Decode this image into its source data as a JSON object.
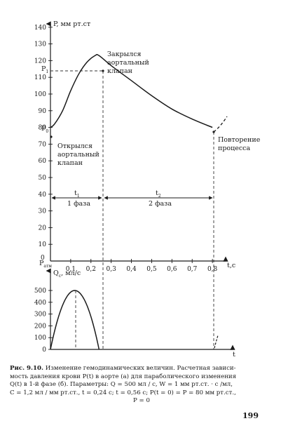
{
  "figure": {
    "top_axis": {
      "ylabel": "P, мм рт.ст",
      "xlabel": "t,с",
      "y_ticks": [
        "140",
        "130",
        "120",
        "110",
        "100",
        "90",
        "80",
        "70",
        "60",
        "50",
        "40",
        "30",
        "20",
        "10"
      ],
      "x_ticks": [
        "0,1",
        "0,2",
        "0,3",
        "0,4",
        "0,5",
        "0,6",
        "0,7",
        "0,8"
      ],
      "origin_y": "0",
      "p_max": "P",
      "p_max_sub": "1",
      "p_min": "P",
      "p_min_sub": "0",
      "p_atm": "P",
      "p_atm_sub": "атм"
    },
    "bottom_axis": {
      "ylabel": "Q",
      "ylabel_sub": "c",
      "ylabel_unit": ", мл/с",
      "xlabel": "t",
      "y_ticks": [
        "500",
        "400",
        "300",
        "200",
        "100",
        "0"
      ]
    },
    "annotations": {
      "closed_1": "Закрылся",
      "closed_2": "аортальный",
      "closed_3": "клапан",
      "opened_1": "Открылся",
      "opened_2": "аортальный",
      "opened_3": "клапан",
      "repeat_1": "Повторение",
      "repeat_2": "процесса",
      "t1": "t",
      "t1_sub": "1",
      "t2": "t",
      "t2_sub": "2",
      "phase1": "1 фаза",
      "phase2": "2 фаза"
    }
  },
  "chart_data": [
    {
      "type": "line",
      "ylabel": "P, мм рт.ст",
      "xlabel": "t,с",
      "ylim": [
        0,
        145
      ],
      "xlim": [
        0,
        0.9
      ],
      "series": [
        {
          "x": [
            0,
            0.02,
            0.06,
            0.1,
            0.14,
            0.18,
            0.22,
            0.24,
            0.3,
            0.4,
            0.5,
            0.6,
            0.7,
            0.8
          ],
          "y": [
            80,
            82,
            90,
            102,
            112,
            119,
            123,
            123,
            117,
            108,
            99,
            91,
            85,
            80
          ]
        }
      ]
    },
    {
      "type": "line",
      "ylabel": "Q, мл/с",
      "xlabel": "t",
      "ylim": [
        0,
        550
      ],
      "xlim": [
        0,
        0.9
      ],
      "series": [
        {
          "x": [
            0,
            0.03,
            0.06,
            0.09,
            0.12,
            0.15,
            0.18,
            0.21,
            0.24
          ],
          "y": [
            0,
            219,
            375,
            469,
            500,
            469,
            375,
            219,
            0
          ]
        }
      ]
    }
  ],
  "caption": {
    "title": "Рис. 9.10.",
    "line1": "Изменение гемодинамических величин. Расчетная зависи-",
    "line2": "мость давления крови P(t) в аорте (а) для параболического изменения",
    "line3": "Q(t) в 1-й фазе (б). Параметры: Q = 500 мл / с, W = 1 мм рт.ст. · с /мл,",
    "line4": "C = 1,2 мл / мм рт.ст., t = 0,24 с; t = 0,56 с; P(t = 0) = P = 80 мм рт.ст.,",
    "line5": "P = 0"
  },
  "page_number": "199"
}
